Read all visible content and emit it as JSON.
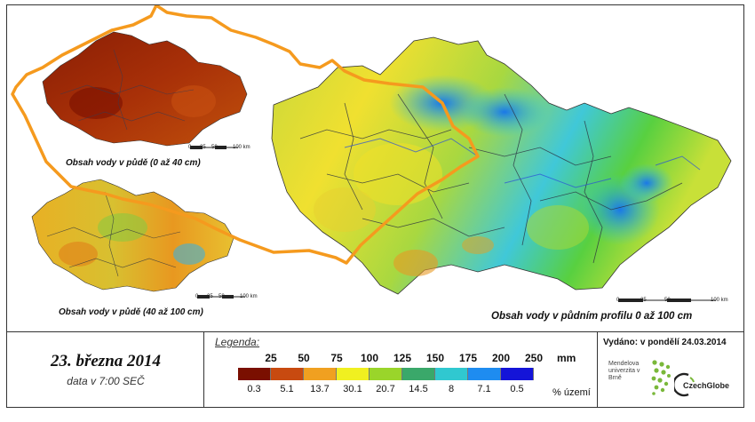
{
  "maps": {
    "top_left_label": "Obsah vody v půdě (0 až 40 cm)",
    "bottom_left_label": "Obsah vody v půdě (40 až 100 cm)",
    "main_label": "Obsah vody v půdním profilu 0 až 100 cm",
    "scale_ticks_small": [
      "0",
      "25",
      "50",
      "100 km"
    ],
    "scale_ticks_main": [
      "0",
      "25",
      "50",
      "100 km"
    ]
  },
  "date": {
    "main": "23. března 2014",
    "sub": "data v 7:00 SEČ"
  },
  "legend": {
    "title": "Legenda:",
    "mm_labels": [
      "25",
      "50",
      "75",
      "100",
      "125",
      "150",
      "175",
      "200",
      "250"
    ],
    "mm_unit": "mm",
    "pct_labels": [
      "0.3",
      "5.1",
      "13.7",
      "30.1",
      "20.7",
      "14.5",
      "8",
      "7.1",
      "0.5"
    ],
    "pct_unit": "% území",
    "colors": [
      "#7a0f00",
      "#c84a10",
      "#f0a020",
      "#f0f020",
      "#9ad52a",
      "#3aa86a",
      "#30c8d0",
      "#1e8cf0",
      "#1414d8"
    ]
  },
  "issued": "Vydáno: v pondělí 24.03.2014",
  "logos": {
    "mendel": "Mendelova univerzita v Brně",
    "czechglobe": "CzechGlobe"
  }
}
